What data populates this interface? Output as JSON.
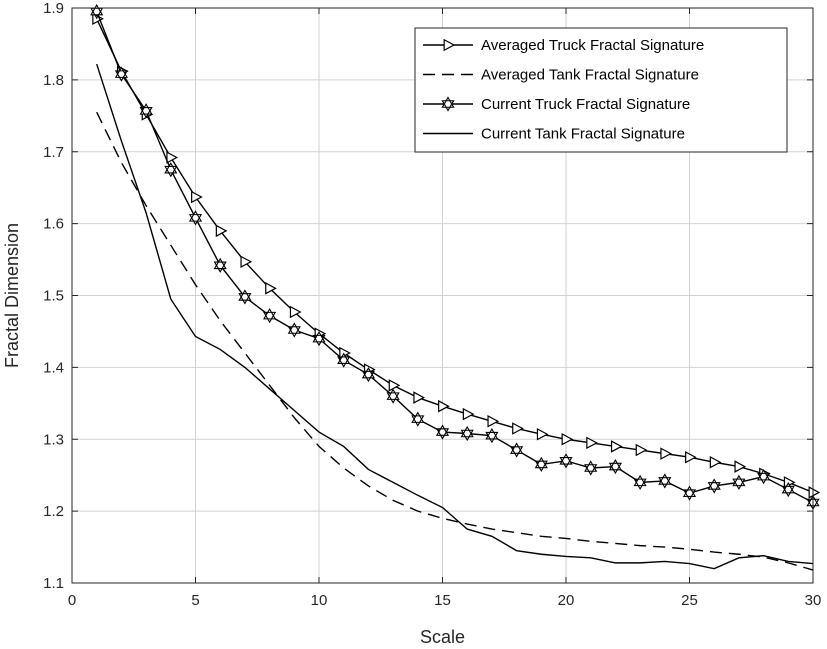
{
  "chart_data": {
    "type": "line",
    "title": "",
    "xlabel": "Scale",
    "ylabel": "Fractal Dimension",
    "xlim": [
      0,
      30
    ],
    "ylim": [
      1.1,
      1.9
    ],
    "xticks": [
      0,
      5,
      10,
      15,
      20,
      25,
      30
    ],
    "yticks": [
      1.1,
      1.2,
      1.3,
      1.4,
      1.5,
      1.6,
      1.7,
      1.8,
      1.9
    ],
    "xtick_labels": [
      "0",
      "5",
      "10",
      "15",
      "20",
      "25",
      "30"
    ],
    "ytick_labels": [
      "1.1",
      "1.2",
      "1.3",
      "1.4",
      "1.5",
      "1.6",
      "1.7",
      "1.8",
      "1.9"
    ],
    "grid": true,
    "legend_position": "top-right",
    "series": [
      {
        "name": "Averaged Truck Fractal Signature",
        "style": "solid-triangle-right",
        "x": [
          1,
          2,
          3,
          4,
          5,
          6,
          7,
          8,
          9,
          10,
          11,
          12,
          13,
          14,
          15,
          16,
          17,
          18,
          19,
          20,
          21,
          22,
          23,
          24,
          25,
          26,
          27,
          28,
          29,
          30
        ],
        "y": [
          1.885,
          1.812,
          1.752,
          1.692,
          1.637,
          1.59,
          1.547,
          1.51,
          1.477,
          1.447,
          1.42,
          1.397,
          1.375,
          1.358,
          1.346,
          1.335,
          1.325,
          1.315,
          1.307,
          1.3,
          1.295,
          1.29,
          1.285,
          1.28,
          1.275,
          1.268,
          1.262,
          1.252,
          1.24,
          1.226
        ]
      },
      {
        "name": "Averaged Tank Fractal Signature",
        "style": "dashed",
        "x": [
          1,
          2,
          3,
          4,
          5,
          6,
          7,
          8,
          9,
          10,
          11,
          12,
          13,
          14,
          15,
          16,
          17,
          18,
          19,
          20,
          21,
          22,
          23,
          24,
          25,
          26,
          27,
          28,
          29,
          30
        ],
        "y": [
          1.755,
          1.685,
          1.625,
          1.57,
          1.515,
          1.465,
          1.42,
          1.375,
          1.33,
          1.29,
          1.26,
          1.235,
          1.215,
          1.2,
          1.19,
          1.182,
          1.175,
          1.17,
          1.165,
          1.162,
          1.158,
          1.155,
          1.152,
          1.15,
          1.147,
          1.143,
          1.14,
          1.136,
          1.128,
          1.118
        ]
      },
      {
        "name": "Current Truck Fractal Signature",
        "style": "solid-hexagram",
        "x": [
          1,
          2,
          3,
          4,
          5,
          6,
          7,
          8,
          9,
          10,
          11,
          12,
          13,
          14,
          15,
          16,
          17,
          18,
          19,
          20,
          21,
          22,
          23,
          24,
          25,
          26,
          27,
          28,
          29,
          30
        ],
        "y": [
          1.895,
          1.808,
          1.757,
          1.675,
          1.608,
          1.542,
          1.498,
          1.472,
          1.452,
          1.44,
          1.41,
          1.39,
          1.36,
          1.328,
          1.31,
          1.308,
          1.305,
          1.285,
          1.265,
          1.27,
          1.26,
          1.262,
          1.24,
          1.242,
          1.225,
          1.235,
          1.24,
          1.248,
          1.23,
          1.212
        ]
      },
      {
        "name": "Current Tank Fractal Signature",
        "style": "solid",
        "x": [
          1,
          2,
          3,
          4,
          5,
          6,
          7,
          8,
          9,
          10,
          11,
          12,
          13,
          14,
          15,
          16,
          17,
          18,
          19,
          20,
          21,
          22,
          23,
          24,
          25,
          26,
          27,
          28,
          29,
          30
        ],
        "y": [
          1.822,
          1.715,
          1.615,
          1.495,
          1.443,
          1.425,
          1.4,
          1.37,
          1.34,
          1.31,
          1.29,
          1.258,
          1.24,
          1.222,
          1.205,
          1.175,
          1.165,
          1.145,
          1.14,
          1.137,
          1.135,
          1.128,
          1.128,
          1.13,
          1.127,
          1.12,
          1.135,
          1.138,
          1.13,
          1.127
        ]
      }
    ]
  }
}
